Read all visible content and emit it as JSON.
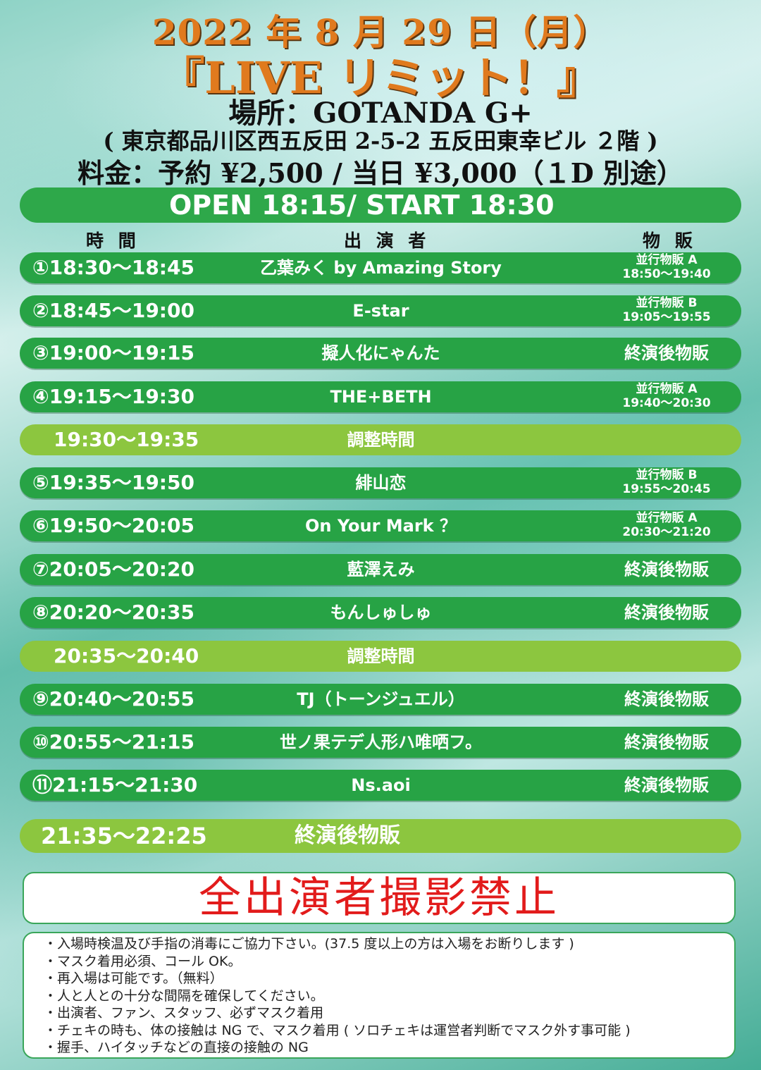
{
  "header": {
    "date": "2022 年 8 月 29 日（月）",
    "title": "『LIVE リミット！』",
    "place": "場所：GOTANDA G+",
    "address": "( 東京都品川区西五反田 2-5-2 五反田東幸ビル ２階 )",
    "price": "料金：予約 ¥2,500 / 当日 ¥3,000（１D 別途）"
  },
  "open_start": "OPEN 18:15/ START 18:30",
  "columns": {
    "time": "時 間",
    "performer": "出 演 者",
    "goods": "物 販"
  },
  "schedule": [
    {
      "time": "①18:30～18:45",
      "performer": "乙葉みく by Amazing Story",
      "goods_line1": "並行物販 A",
      "goods_line2": "18:50～19:40"
    },
    {
      "time": "②18:45～19:00",
      "performer": "E-star",
      "goods_line1": "並行物販 B",
      "goods_line2": "19:05～19:55"
    },
    {
      "time": "③19:00～19:15",
      "performer": "擬人化にゃんた",
      "goods": "終演後物販"
    },
    {
      "time": "④19:15～19:30",
      "performer": "THE+BETH",
      "goods_line1": "並行物販 A",
      "goods_line2": "19:40～20:30"
    },
    {
      "time": "19:30～19:35",
      "performer": "調整時間"
    },
    {
      "time": "⑤19:35～19:50",
      "performer": "緋山恋",
      "goods_line1": "並行物販 B",
      "goods_line2": "19:55～20:45"
    },
    {
      "time": "⑥19:50～20:05",
      "performer": "On Your Mark ？",
      "goods_line1": "並行物販 A",
      "goods_line2": "20:30～21:20"
    },
    {
      "time": "⑦20:05～20:20",
      "performer": "藍澤えみ",
      "goods": "終演後物販"
    },
    {
      "time": "⑧20:20～20:35",
      "performer": "もんしゅしゅ",
      "goods": "終演後物販"
    },
    {
      "time": "20:35～20:40",
      "performer": "調整時間"
    },
    {
      "time": "⑨20:40～20:55",
      "performer": "TJ（トーンジュエル）",
      "goods": "終演後物販"
    },
    {
      "time": "⑩20:55～21:15",
      "performer": "世ノ果テデ人形ハ唯哂フ。",
      "goods": "終演後物販"
    },
    {
      "time": "⑪21:15～21:30",
      "performer": "Ns.aoi",
      "goods": "終演後物販"
    },
    {
      "time": "21:35～22:25",
      "performer": "終演後物販"
    }
  ],
  "ban_text": "全出演者撮影禁止",
  "notes": [
    "・入場時検温及び手指の消毒にご協力下さい。(37.5 度以上の方は入場をお断りします )",
    "・マスク着用必須、コール OK。",
    "・再入場は可能です。（無料）",
    "・人と人との十分な間隔を確保してください。",
    "・出演者、ファン、スタッフ、必ずマスク着用",
    "・チェキの時も、体の接触は NG で、マスク着用 ( ソロチェキは運営者判断でマスク外す事可能 )",
    "・握手、ハイタッチなどの直接の接触の NG"
  ]
}
